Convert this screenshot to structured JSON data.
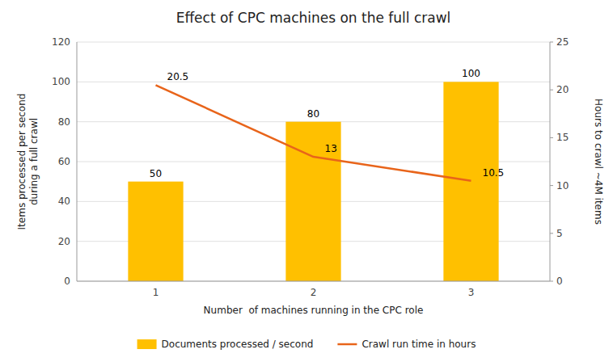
{
  "chart_data": {
    "type": "bar",
    "title": "Effect of CPC machines on the full crawl",
    "xlabel": "Number  of machines running in the CPC role",
    "ylabel": "Items processed per second\nduring a full crawl",
    "y2label": "Hours to crawl ~4M items",
    "x": [
      1,
      2,
      3
    ],
    "xlim": [
      0.5,
      3.5
    ],
    "xticks": [
      1,
      2,
      3
    ],
    "ylim": [
      0,
      120
    ],
    "yticks": [
      0,
      20,
      40,
      60,
      80,
      100,
      120
    ],
    "y2lim": [
      0,
      25
    ],
    "y2ticks": [
      0,
      5,
      10,
      15,
      20,
      25
    ],
    "grid": true,
    "legend": "bottom",
    "data_labels": true,
    "series": [
      {
        "name": "Documents processed / second",
        "type": "bar",
        "color": "#FFC000",
        "values": [
          50,
          80,
          100
        ]
      },
      {
        "name": "Crawl run time in hours",
        "type": "line",
        "color": "#E8641A",
        "axis": "y2",
        "values": [
          20.5,
          13,
          10.5
        ]
      }
    ]
  }
}
